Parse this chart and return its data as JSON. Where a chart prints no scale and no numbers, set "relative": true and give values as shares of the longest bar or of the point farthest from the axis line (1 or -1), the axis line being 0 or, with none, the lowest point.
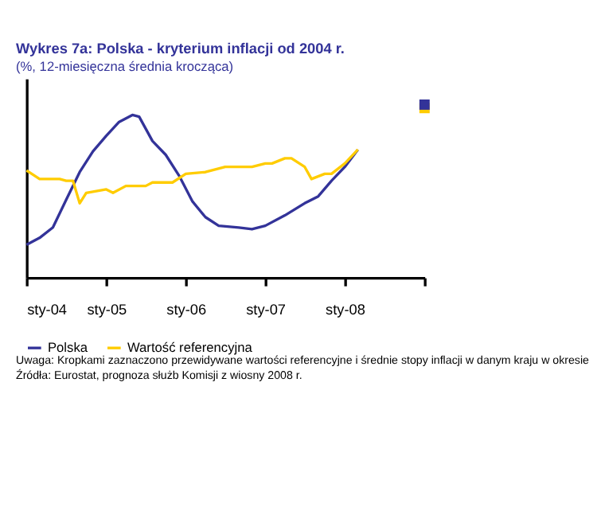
{
  "chart_data": {
    "type": "line",
    "title": "Wykres 7a: Polska - kryterium inflacji od 2004 r.",
    "subtitle": "(%, 12-miesięczna średnia krocząca)",
    "relative": true,
    "xlim": [
      "2004-01",
      "2009-01"
    ],
    "xticks": [
      {
        "value": "2004-01",
        "label": "sty-04"
      },
      {
        "value": "2005-01",
        "label": "sty-05"
      },
      {
        "value": "2006-01",
        "label": "sty-06"
      },
      {
        "value": "2007-01",
        "label": "sty-07"
      },
      {
        "value": "2008-01",
        "label": "sty-08"
      },
      {
        "value": "2009-01",
        "label": null
      }
    ],
    "legend": "bottom",
    "grid": false,
    "marker": "none",
    "line_style": "solid",
    "series": [
      {
        "name": "Polska",
        "color": "#333399",
        "x": [
          "2004-01",
          "2004-03",
          "2004-05",
          "2004-07",
          "2004-09",
          "2004-11",
          "2005-01",
          "2005-03",
          "2005-05",
          "2005-06",
          "2005-08",
          "2005-10",
          "2005-12",
          "2006-02",
          "2006-04",
          "2006-06",
          "2006-09",
          "2006-11",
          "2007-01",
          "2007-04",
          "2007-07",
          "2007-09",
          "2007-11",
          "2008-01",
          "2008-03"
        ],
        "values": [
          0.19,
          0.23,
          0.29,
          0.45,
          0.61,
          0.73,
          0.82,
          0.9,
          0.94,
          0.93,
          0.79,
          0.71,
          0.59,
          0.44,
          0.35,
          0.3,
          0.29,
          0.28,
          0.3,
          0.36,
          0.43,
          0.47,
          0.56,
          0.64,
          0.74
        ]
      },
      {
        "name": "Wartość referencyjna",
        "color": "#ffcc00",
        "x": [
          "2004-01",
          "2004-03",
          "2004-06",
          "2004-07",
          "2004-08",
          "2004-09",
          "2004-10",
          "2005-01",
          "2005-02",
          "2005-04",
          "2005-07",
          "2005-08",
          "2005-11",
          "2006-01",
          "2006-04",
          "2006-07",
          "2006-11",
          "2007-01",
          "2007-02",
          "2007-04",
          "2007-05",
          "2007-07",
          "2007-08",
          "2007-10",
          "2007-11",
          "2008-01",
          "2008-03"
        ],
        "values": [
          0.62,
          0.57,
          0.57,
          0.56,
          0.56,
          0.43,
          0.49,
          0.51,
          0.49,
          0.53,
          0.53,
          0.55,
          0.55,
          0.6,
          0.61,
          0.64,
          0.64,
          0.66,
          0.66,
          0.69,
          0.69,
          0.64,
          0.57,
          0.6,
          0.6,
          0.66,
          0.74
        ]
      },
      {
        "type": "scatter",
        "marker": "square",
        "color": "#ffcc00",
        "x": [
          "2009-01"
        ],
        "values": [
          0.98
        ]
      },
      {
        "type": "scatter",
        "marker": "square",
        "color": "#333399",
        "x": [
          "2009-01"
        ],
        "values": [
          1.0
        ]
      }
    ],
    "annotations": [
      "Uwaga: Kropkami zaznaczono przewidywane wartości referencyjne i średnie stopy inflacji w danym kraju w okresie",
      "Źródła: Eurostat, prognoza służb Komisji z wiosny 2008 r."
    ]
  }
}
